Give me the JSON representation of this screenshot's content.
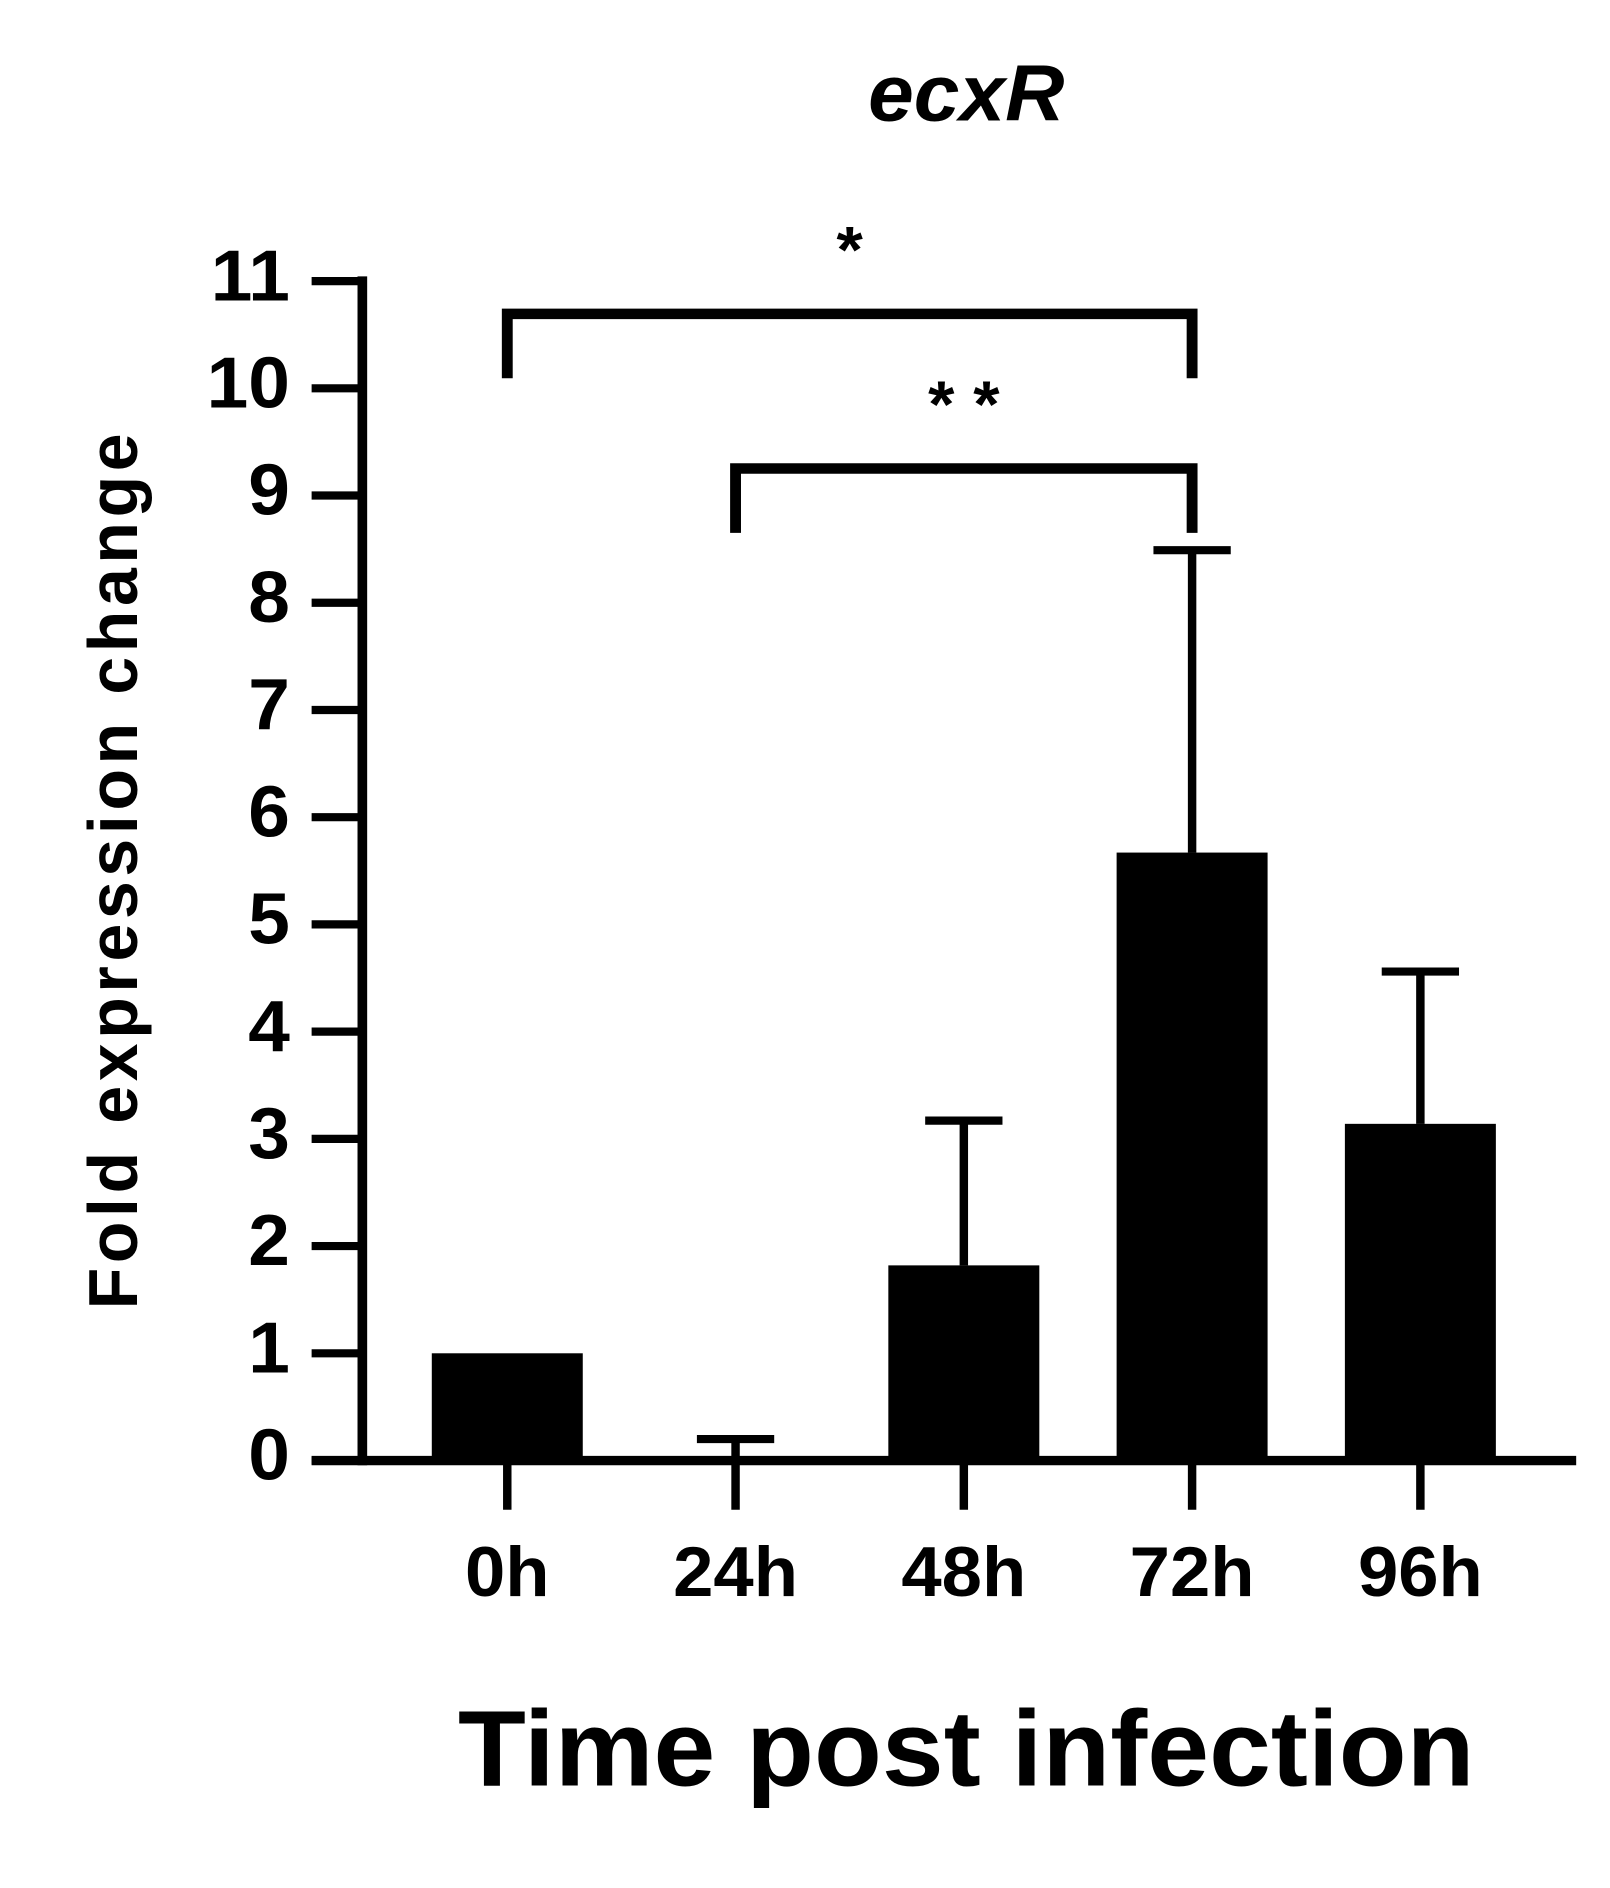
{
  "chart_data": {
    "type": "bar",
    "title": "ecxR",
    "x_label": "Time post infection",
    "y_label": "Fold expression change",
    "categories": [
      "0h",
      "24h",
      "48h",
      "72h",
      "96h"
    ],
    "values": [
      1.0,
      0,
      1.82,
      5.67,
      3.14
    ],
    "errors": [
      0,
      0.2,
      1.35,
      2.82,
      1.42
    ],
    "color": "#000000",
    "ylim": [
      0,
      11
    ],
    "yticks": [
      0,
      1,
      2,
      3,
      4,
      5,
      6,
      7,
      8,
      9,
      10,
      11
    ],
    "grid": false,
    "significance": [
      {
        "text": "*",
        "between": [
          "0h",
          "72h"
        ]
      },
      {
        "text": "* *",
        "between": [
          "24h",
          "72h"
        ]
      }
    ]
  }
}
